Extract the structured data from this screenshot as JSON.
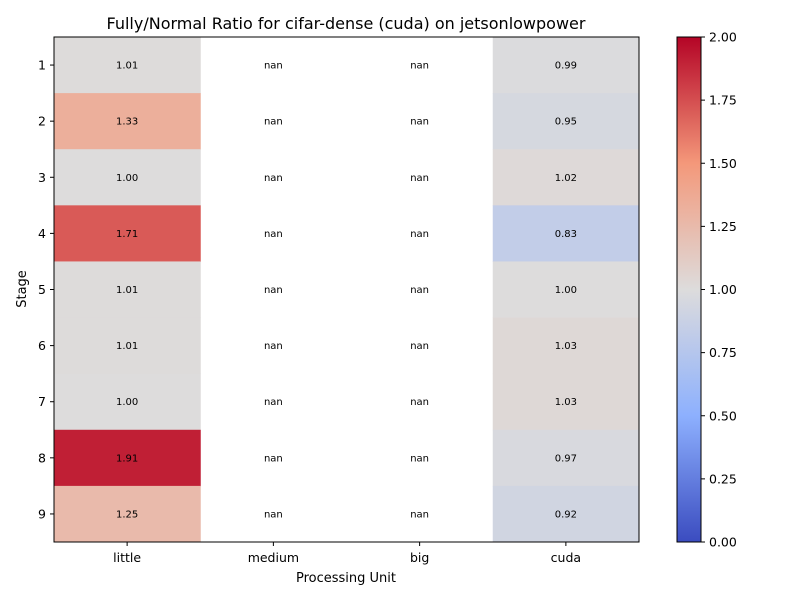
{
  "chart_data": {
    "type": "heatmap",
    "title": "Fully/Normal Ratio for cifar-dense (cuda) on jetsonlowpower",
    "xlabel": "Processing Unit",
    "ylabel": "Stage",
    "x_categories": [
      "little",
      "medium",
      "big",
      "cuda"
    ],
    "y_categories": [
      "1",
      "2",
      "3",
      "4",
      "5",
      "6",
      "7",
      "8",
      "9"
    ],
    "values": [
      [
        1.01,
        null,
        null,
        0.99
      ],
      [
        1.33,
        null,
        null,
        0.95
      ],
      [
        1.0,
        null,
        null,
        1.02
      ],
      [
        1.71,
        null,
        null,
        0.83
      ],
      [
        1.01,
        null,
        null,
        1.0
      ],
      [
        1.01,
        null,
        null,
        1.03
      ],
      [
        1.0,
        null,
        null,
        1.03
      ],
      [
        1.91,
        null,
        null,
        0.97
      ],
      [
        1.25,
        null,
        null,
        0.92
      ]
    ],
    "cell_labels": [
      [
        "1.01",
        "nan",
        "nan",
        "0.99"
      ],
      [
        "1.33",
        "nan",
        "nan",
        "0.95"
      ],
      [
        "1.00",
        "nan",
        "nan",
        "1.02"
      ],
      [
        "1.71",
        "nan",
        "nan",
        "0.83"
      ],
      [
        "1.01",
        "nan",
        "nan",
        "1.00"
      ],
      [
        "1.01",
        "nan",
        "nan",
        "1.03"
      ],
      [
        "1.00",
        "nan",
        "nan",
        "1.03"
      ],
      [
        "1.91",
        "nan",
        "nan",
        "0.97"
      ],
      [
        "1.25",
        "nan",
        "nan",
        "0.92"
      ]
    ],
    "colormap": "coolwarm",
    "vmin": 0.0,
    "vmax": 2.0,
    "colorbar_ticks": [
      "0.00",
      "0.25",
      "0.50",
      "0.75",
      "1.00",
      "1.25",
      "1.50",
      "1.75",
      "2.00"
    ],
    "legend_placement": "right (colorbar)",
    "grid": false
  }
}
